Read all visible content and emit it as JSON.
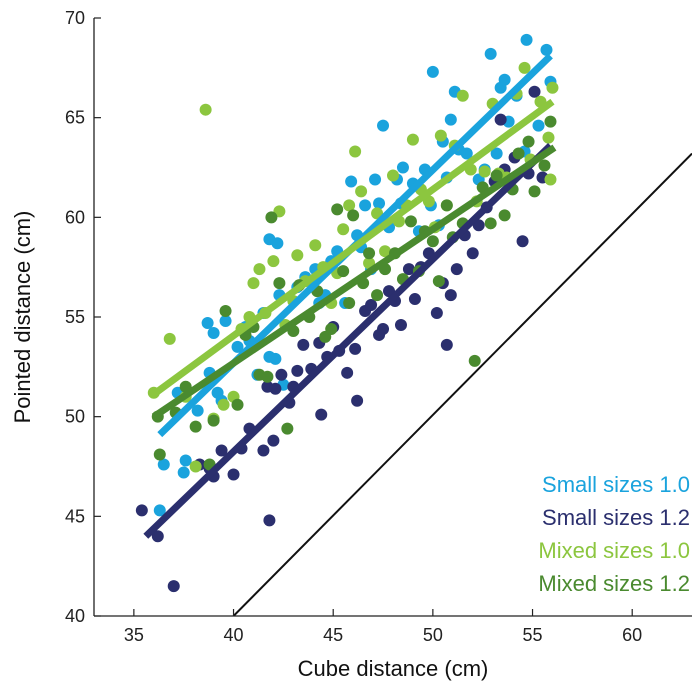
{
  "chart_data": {
    "type": "scatter",
    "title": "",
    "xlabel": "Cube distance (cm)",
    "ylabel": "Pointed distance (cm)",
    "xlim": [
      33,
      63
    ],
    "ylim": [
      40,
      70
    ],
    "xticks": [
      35,
      40,
      45,
      50,
      55,
      60
    ],
    "yticks": [
      40,
      45,
      50,
      55,
      60,
      65,
      70
    ],
    "grid": false,
    "legend_placement": "bottom-right",
    "identity_line": {
      "from": [
        40,
        40
      ],
      "to": [
        63,
        63.2
      ],
      "color": "#111111"
    },
    "series": [
      {
        "name": "Small sizes 1.0",
        "color": "#1aa3dd",
        "fit": {
          "x1": 36.3,
          "y1": 49.1,
          "x2": 55.9,
          "y2": 68.1
        },
        "points": [
          [
            36.3,
            45.3
          ],
          [
            36.5,
            47.6
          ],
          [
            37.2,
            51.2
          ],
          [
            37.6,
            47.8
          ],
          [
            37.5,
            47.2
          ],
          [
            38.2,
            50.3
          ],
          [
            38.7,
            54.7
          ],
          [
            38.8,
            52.2
          ],
          [
            39.0,
            54.2
          ],
          [
            39.2,
            51.2
          ],
          [
            39.4,
            50.8
          ],
          [
            39.6,
            54.8
          ],
          [
            40.2,
            53.5
          ],
          [
            40.6,
            54.5
          ],
          [
            40.8,
            53.8
          ],
          [
            41.2,
            52.1
          ],
          [
            41.5,
            55.2
          ],
          [
            41.8,
            58.9
          ],
          [
            41.8,
            53.0
          ],
          [
            42.1,
            52.9
          ],
          [
            42.2,
            58.7
          ],
          [
            42.3,
            56.1
          ],
          [
            42.5,
            51.6
          ],
          [
            43.2,
            56.5
          ],
          [
            43.6,
            57.0
          ],
          [
            44.1,
            57.4
          ],
          [
            44.3,
            55.7
          ],
          [
            44.6,
            56.1
          ],
          [
            44.9,
            57.8
          ],
          [
            45.2,
            58.3
          ],
          [
            45.6,
            55.7
          ],
          [
            45.9,
            61.8
          ],
          [
            46.2,
            59.1
          ],
          [
            46.4,
            58.5
          ],
          [
            46.6,
            60.6
          ],
          [
            46.9,
            57.4
          ],
          [
            47.1,
            61.9
          ],
          [
            47.3,
            60.7
          ],
          [
            47.5,
            64.6
          ],
          [
            47.8,
            59.5
          ],
          [
            48.2,
            61.9
          ],
          [
            48.4,
            60.7
          ],
          [
            48.5,
            62.5
          ],
          [
            48.6,
            60.6
          ],
          [
            49.0,
            61.7
          ],
          [
            49.3,
            59.3
          ],
          [
            49.6,
            62.4
          ],
          [
            49.9,
            60.6
          ],
          [
            50.0,
            67.3
          ],
          [
            50.3,
            59.6
          ],
          [
            50.5,
            63.8
          ],
          [
            50.7,
            62.0
          ],
          [
            50.9,
            64.9
          ],
          [
            51.1,
            66.3
          ],
          [
            51.3,
            63.4
          ],
          [
            51.7,
            63.2
          ],
          [
            52.3,
            61.9
          ],
          [
            52.6,
            62.4
          ],
          [
            52.9,
            68.2
          ],
          [
            53.2,
            63.2
          ],
          [
            53.4,
            66.5
          ],
          [
            53.6,
            66.9
          ],
          [
            53.8,
            64.8
          ],
          [
            54.2,
            66.1
          ],
          [
            54.6,
            63.3
          ],
          [
            54.7,
            68.9
          ],
          [
            55.3,
            64.6
          ],
          [
            55.7,
            68.4
          ],
          [
            55.9,
            66.8
          ]
        ]
      },
      {
        "name": "Small sizes 1.2",
        "color": "#2b2f6e",
        "fit": {
          "x1": 35.6,
          "y1": 44.0,
          "x2": 55.9,
          "y2": 63.6
        },
        "points": [
          [
            35.4,
            45.3
          ],
          [
            36.2,
            44.0
          ],
          [
            37.0,
            41.5
          ],
          [
            38.3,
            47.6
          ],
          [
            38.8,
            47.4
          ],
          [
            39.0,
            47.0
          ],
          [
            39.4,
            48.3
          ],
          [
            40.0,
            47.1
          ],
          [
            40.4,
            48.4
          ],
          [
            40.8,
            49.4
          ],
          [
            41.5,
            48.3
          ],
          [
            41.7,
            51.5
          ],
          [
            41.8,
            44.8
          ],
          [
            42.0,
            48.8
          ],
          [
            42.1,
            51.4
          ],
          [
            42.4,
            52.1
          ],
          [
            42.8,
            50.7
          ],
          [
            43.0,
            51.5
          ],
          [
            43.2,
            52.3
          ],
          [
            43.5,
            53.6
          ],
          [
            43.9,
            52.4
          ],
          [
            44.3,
            53.7
          ],
          [
            44.4,
            50.1
          ],
          [
            44.7,
            53.0
          ],
          [
            45.0,
            54.5
          ],
          [
            45.3,
            53.3
          ],
          [
            45.7,
            52.2
          ],
          [
            46.1,
            53.4
          ],
          [
            46.2,
            50.8
          ],
          [
            46.6,
            55.3
          ],
          [
            46.9,
            55.6
          ],
          [
            47.3,
            54.1
          ],
          [
            47.5,
            54.4
          ],
          [
            47.8,
            56.3
          ],
          [
            48.1,
            55.8
          ],
          [
            48.4,
            54.6
          ],
          [
            48.8,
            57.4
          ],
          [
            49.1,
            55.9
          ],
          [
            49.4,
            57.5
          ],
          [
            49.8,
            58.2
          ],
          [
            50.2,
            55.2
          ],
          [
            50.5,
            56.7
          ],
          [
            50.7,
            53.6
          ],
          [
            50.9,
            56.1
          ],
          [
            51.2,
            57.4
          ],
          [
            51.6,
            59.1
          ],
          [
            52.0,
            58.2
          ],
          [
            52.3,
            59.6
          ],
          [
            52.7,
            60.5
          ],
          [
            53.1,
            61.8
          ],
          [
            53.4,
            64.9
          ],
          [
            53.6,
            62.4
          ],
          [
            53.9,
            61.5
          ],
          [
            54.1,
            63.0
          ],
          [
            54.5,
            58.8
          ],
          [
            54.8,
            62.2
          ],
          [
            55.1,
            66.3
          ],
          [
            55.5,
            62.0
          ]
        ]
      },
      {
        "name": "Mixed sizes 1.0",
        "color": "#8cc63f",
        "fit": {
          "x1": 36.1,
          "y1": 51.2,
          "x2": 56.0,
          "y2": 65.8
        },
        "points": [
          [
            36.0,
            51.2
          ],
          [
            36.8,
            53.9
          ],
          [
            37.6,
            51.0
          ],
          [
            38.1,
            47.5
          ],
          [
            38.6,
            65.4
          ],
          [
            39.0,
            49.9
          ],
          [
            39.5,
            50.6
          ],
          [
            40.0,
            51.0
          ],
          [
            40.4,
            54.4
          ],
          [
            40.8,
            55.0
          ],
          [
            41.0,
            56.7
          ],
          [
            41.3,
            57.4
          ],
          [
            41.6,
            55.2
          ],
          [
            42.0,
            57.8
          ],
          [
            42.3,
            60.3
          ],
          [
            42.6,
            54.6
          ],
          [
            43.0,
            55.8
          ],
          [
            43.2,
            58.1
          ],
          [
            43.6,
            56.8
          ],
          [
            44.1,
            58.6
          ],
          [
            44.5,
            57.5
          ],
          [
            44.9,
            55.7
          ],
          [
            45.2,
            57.2
          ],
          [
            45.5,
            59.4
          ],
          [
            45.8,
            60.6
          ],
          [
            46.1,
            63.3
          ],
          [
            46.4,
            61.3
          ],
          [
            46.8,
            57.7
          ],
          [
            47.2,
            60.2
          ],
          [
            47.6,
            58.3
          ],
          [
            48.0,
            62.1
          ],
          [
            48.3,
            59.8
          ],
          [
            48.7,
            60.6
          ],
          [
            49.0,
            63.9
          ],
          [
            49.4,
            61.4
          ],
          [
            49.8,
            60.8
          ],
          [
            50.1,
            59.5
          ],
          [
            50.4,
            64.1
          ],
          [
            50.7,
            60.6
          ],
          [
            51.1,
            63.6
          ],
          [
            51.5,
            66.1
          ],
          [
            51.9,
            62.4
          ],
          [
            52.2,
            60.8
          ],
          [
            52.6,
            62.3
          ],
          [
            53.0,
            65.7
          ],
          [
            53.3,
            62.2
          ],
          [
            53.7,
            62.0
          ],
          [
            54.2,
            66.2
          ],
          [
            54.6,
            67.5
          ],
          [
            54.9,
            62.9
          ],
          [
            55.4,
            65.8
          ],
          [
            55.8,
            64.0
          ],
          [
            56.0,
            66.5
          ],
          [
            55.9,
            61.9
          ]
        ]
      },
      {
        "name": "Mixed sizes 1.2",
        "color": "#4a8a2f",
        "fit": {
          "x1": 36.0,
          "y1": 50.0,
          "x2": 56.1,
          "y2": 63.5
        },
        "points": [
          [
            36.2,
            50.0
          ],
          [
            36.3,
            48.1
          ],
          [
            37.1,
            50.2
          ],
          [
            37.6,
            51.5
          ],
          [
            38.1,
            49.5
          ],
          [
            38.8,
            47.6
          ],
          [
            39.0,
            49.8
          ],
          [
            39.6,
            55.3
          ],
          [
            40.2,
            50.6
          ],
          [
            40.6,
            54.1
          ],
          [
            41.0,
            54.5
          ],
          [
            41.3,
            52.1
          ],
          [
            41.7,
            52.0
          ],
          [
            41.9,
            60.0
          ],
          [
            42.3,
            56.7
          ],
          [
            42.7,
            49.4
          ],
          [
            43.0,
            54.3
          ],
          [
            43.3,
            56.6
          ],
          [
            43.8,
            55.0
          ],
          [
            44.2,
            56.3
          ],
          [
            44.6,
            54.0
          ],
          [
            44.9,
            54.4
          ],
          [
            45.2,
            60.4
          ],
          [
            45.5,
            57.3
          ],
          [
            45.8,
            55.7
          ],
          [
            46.0,
            60.1
          ],
          [
            46.5,
            56.7
          ],
          [
            46.8,
            58.2
          ],
          [
            47.2,
            56.1
          ],
          [
            47.6,
            57.4
          ],
          [
            48.1,
            58.2
          ],
          [
            48.5,
            56.9
          ],
          [
            48.9,
            59.8
          ],
          [
            49.3,
            57.3
          ],
          [
            49.6,
            59.3
          ],
          [
            50.0,
            58.8
          ],
          [
            50.3,
            56.8
          ],
          [
            50.7,
            60.6
          ],
          [
            51.0,
            59.0
          ],
          [
            51.5,
            59.7
          ],
          [
            52.1,
            52.8
          ],
          [
            52.5,
            61.5
          ],
          [
            52.9,
            59.7
          ],
          [
            53.2,
            62.1
          ],
          [
            53.6,
            60.1
          ],
          [
            54.0,
            61.4
          ],
          [
            54.3,
            63.2
          ],
          [
            54.8,
            63.8
          ],
          [
            55.1,
            61.3
          ],
          [
            55.6,
            62.6
          ],
          [
            55.9,
            64.8
          ]
        ]
      }
    ]
  }
}
